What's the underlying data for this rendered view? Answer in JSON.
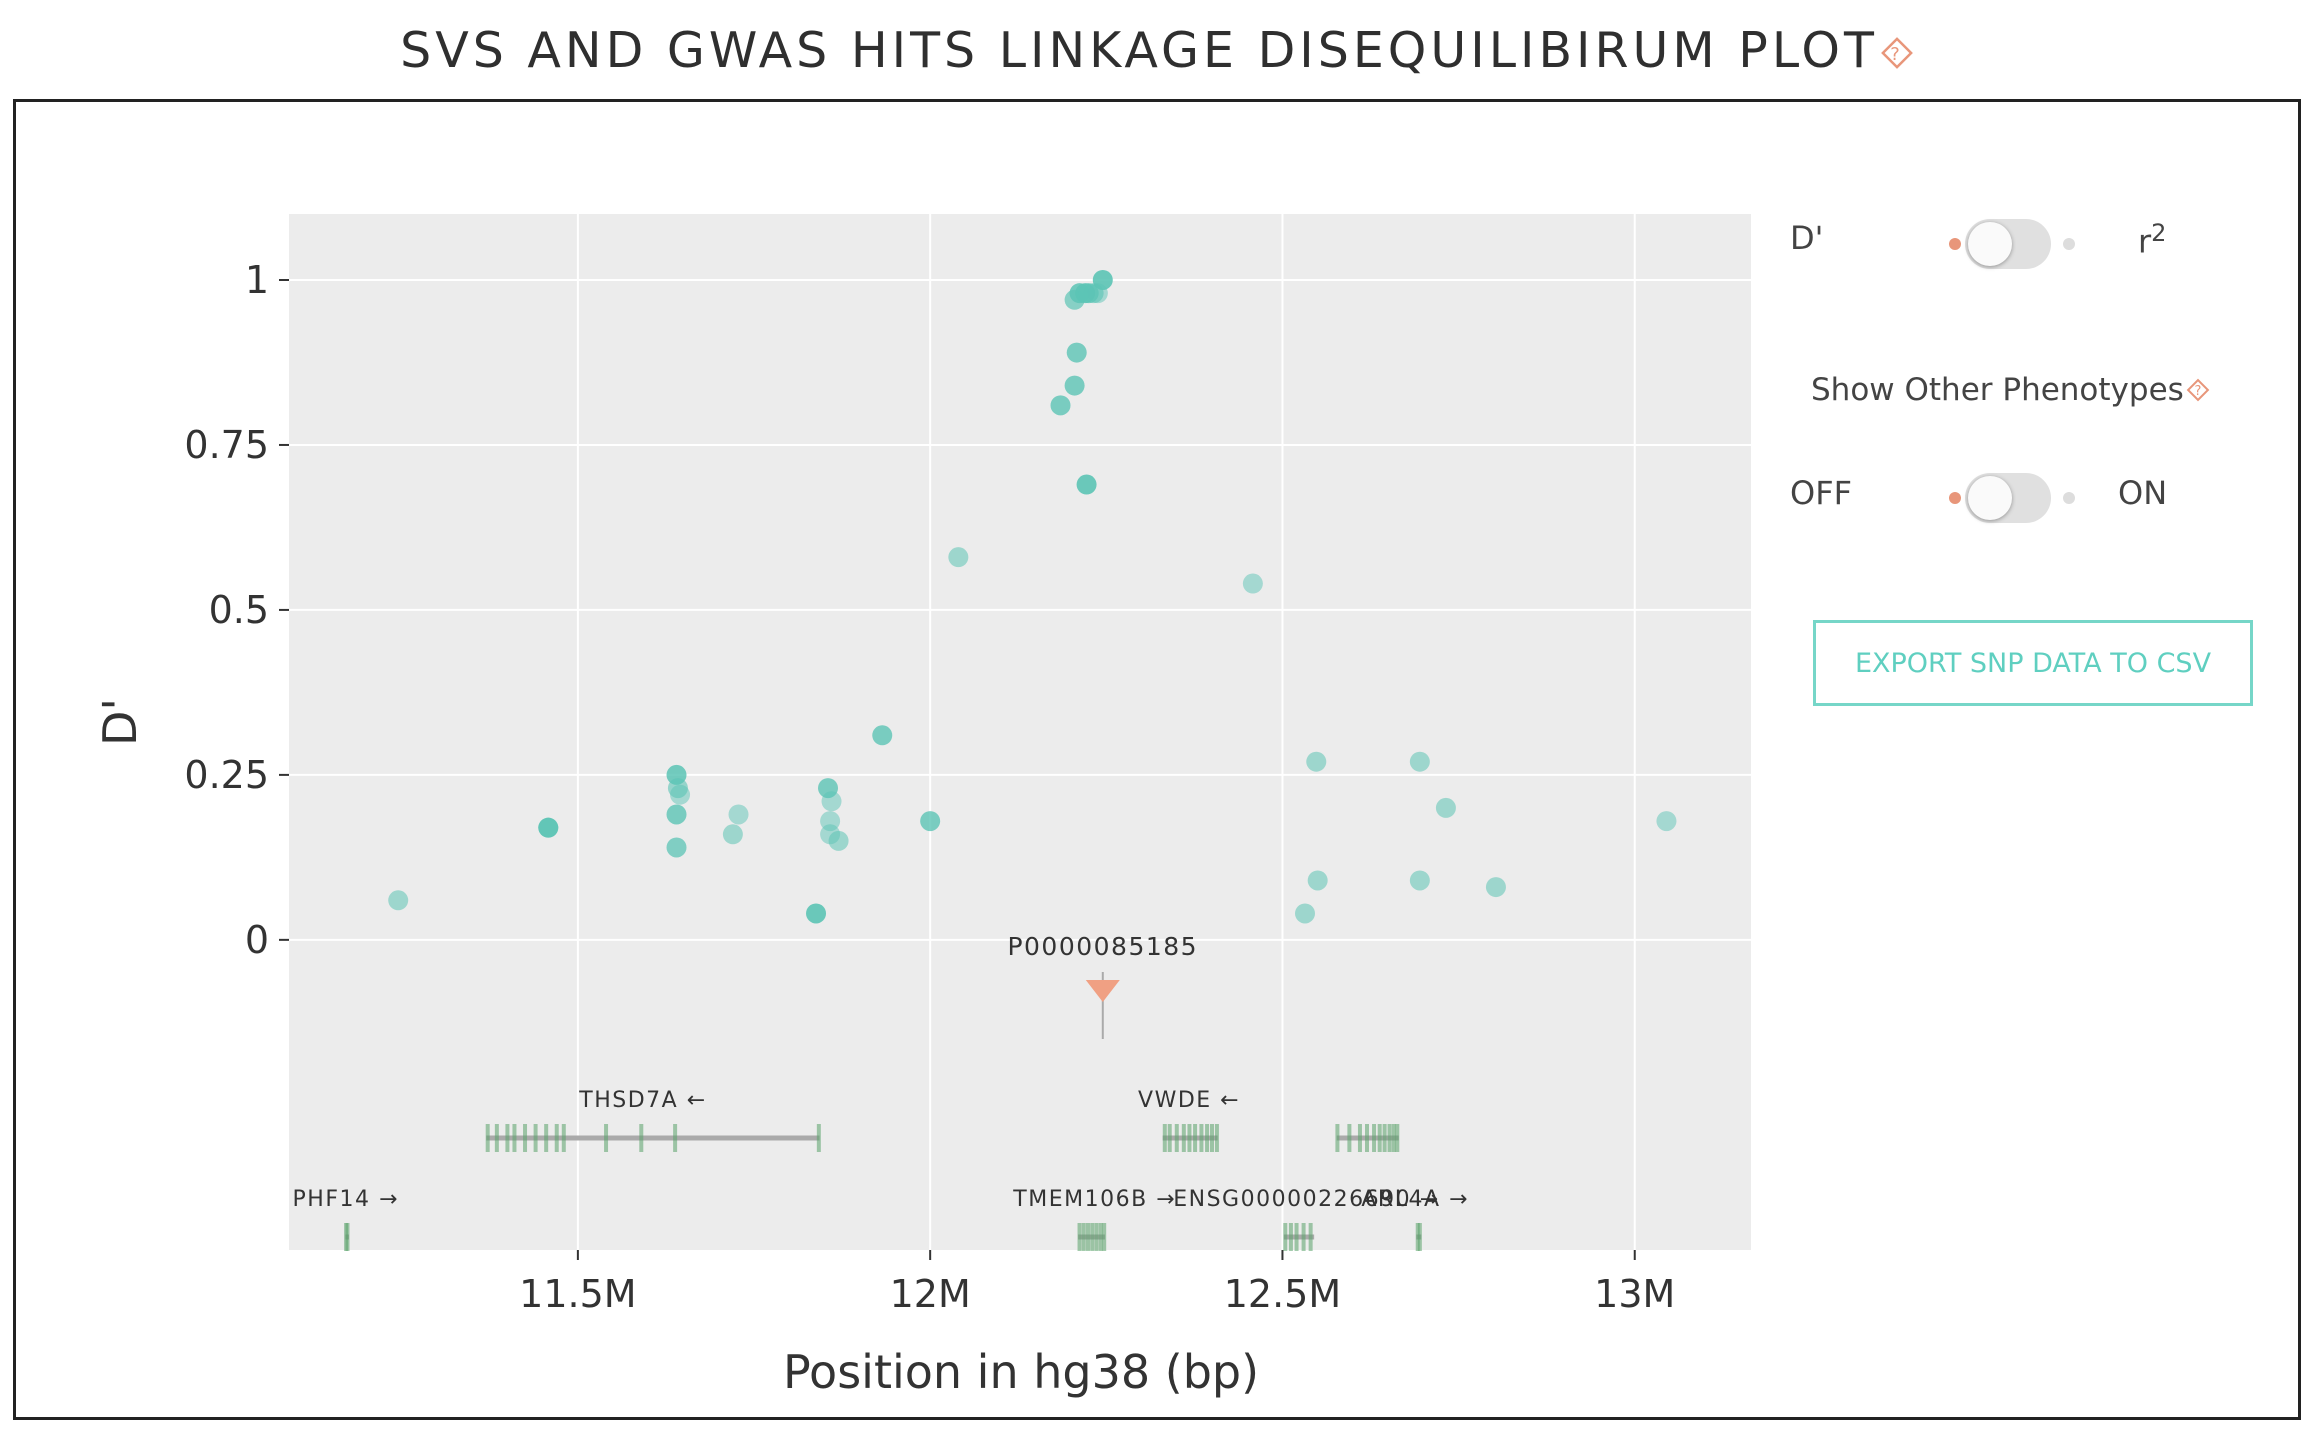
{
  "page": {
    "title": "SVS AND GWAS HITS LINKAGE DISEQUILIBIRUM PLOT",
    "help_icon": "help-icon",
    "accent_color": "#e8967a"
  },
  "controls": {
    "metric_toggle": {
      "left_label": "D'",
      "right_label": "r",
      "right_label_sup": "2",
      "selected": "D'"
    },
    "phenotype_toggle": {
      "heading": "Show Other Phenotypes",
      "off_label": "OFF",
      "on_label": "ON",
      "selected": "OFF"
    },
    "export_button": {
      "label": "EXPORT SNP DATA TO CSV",
      "color": "#76d6c8"
    }
  },
  "chart_data": {
    "type": "scatter",
    "title": "",
    "xlabel": "Position in hg38 (bp)",
    "ylabel": "D'",
    "xlim": [
      11090000,
      13165000
    ],
    "ylim": [
      -0.47,
      1.1
    ],
    "x_ticks": [
      {
        "value": 11500000,
        "label": "11.5M"
      },
      {
        "value": 12000000,
        "label": "12M"
      },
      {
        "value": 12500000,
        "label": "12.5M"
      },
      {
        "value": 13000000,
        "label": "13M"
      }
    ],
    "y_ticks": [
      {
        "value": 0,
        "label": "0"
      },
      {
        "value": 0.25,
        "label": "0.25"
      },
      {
        "value": 0.5,
        "label": "0.5"
      },
      {
        "value": 0.75,
        "label": "0.75"
      },
      {
        "value": 1,
        "label": "1"
      }
    ],
    "grid": true,
    "point_color": "#5cc4b5",
    "points": [
      {
        "x": 11245000,
        "y": 0.06,
        "o": 0.55
      },
      {
        "x": 11458000,
        "y": 0.17,
        "o": 0.85
      },
      {
        "x": 11458000,
        "y": 0.17,
        "o": 0.7
      },
      {
        "x": 11640000,
        "y": 0.25,
        "o": 0.85
      },
      {
        "x": 11642000,
        "y": 0.23,
        "o": 0.6
      },
      {
        "x": 11645000,
        "y": 0.22,
        "o": 0.5
      },
      {
        "x": 11640000,
        "y": 0.19,
        "o": 0.8
      },
      {
        "x": 11640000,
        "y": 0.14,
        "o": 0.75
      },
      {
        "x": 11720000,
        "y": 0.16,
        "o": 0.55
      },
      {
        "x": 11728000,
        "y": 0.19,
        "o": 0.5
      },
      {
        "x": 11838000,
        "y": 0.04,
        "o": 0.9
      },
      {
        "x": 11855000,
        "y": 0.23,
        "o": 0.8
      },
      {
        "x": 11860000,
        "y": 0.21,
        "o": 0.5
      },
      {
        "x": 11858000,
        "y": 0.18,
        "o": 0.5
      },
      {
        "x": 11858000,
        "y": 0.16,
        "o": 0.5
      },
      {
        "x": 11870000,
        "y": 0.15,
        "o": 0.55
      },
      {
        "x": 11932000,
        "y": 0.31,
        "o": 0.8
      },
      {
        "x": 12000000,
        "y": 0.18,
        "o": 0.8
      },
      {
        "x": 12040000,
        "y": 0.58,
        "o": 0.55
      },
      {
        "x": 12185000,
        "y": 0.81,
        "o": 0.8
      },
      {
        "x": 12205000,
        "y": 0.84,
        "o": 0.8
      },
      {
        "x": 12208000,
        "y": 0.89,
        "o": 0.8
      },
      {
        "x": 12205000,
        "y": 0.97,
        "o": 0.7
      },
      {
        "x": 12212000,
        "y": 0.98,
        "o": 0.85
      },
      {
        "x": 12220000,
        "y": 0.98,
        "o": 0.85
      },
      {
        "x": 12225000,
        "y": 0.98,
        "o": 0.75
      },
      {
        "x": 12232000,
        "y": 0.98,
        "o": 0.6
      },
      {
        "x": 12238000,
        "y": 0.98,
        "o": 0.5
      },
      {
        "x": 12245000,
        "y": 1.0,
        "o": 0.9
      },
      {
        "x": 12222000,
        "y": 0.69,
        "o": 0.9
      },
      {
        "x": 12458000,
        "y": 0.54,
        "o": 0.5
      },
      {
        "x": 12532000,
        "y": 0.04,
        "o": 0.55
      },
      {
        "x": 12548000,
        "y": 0.27,
        "o": 0.55
      },
      {
        "x": 12550000,
        "y": 0.09,
        "o": 0.55
      },
      {
        "x": 12695000,
        "y": 0.27,
        "o": 0.55
      },
      {
        "x": 12695000,
        "y": 0.09,
        "o": 0.55
      },
      {
        "x": 12732000,
        "y": 0.2,
        "o": 0.55
      },
      {
        "x": 12803000,
        "y": 0.08,
        "o": 0.55
      },
      {
        "x": 13045000,
        "y": 0.18,
        "o": 0.5
      }
    ],
    "sv_marker": {
      "label": "P0000085185",
      "x": 12245000,
      "color": "#f0a083"
    },
    "genes": [
      {
        "name": "PHF14",
        "strand": "+",
        "row": 2,
        "start": 11170000,
        "end": 11175000,
        "label_x": 11095000,
        "exons": [
          11171000,
          11173000
        ]
      },
      {
        "name": "THSD7A",
        "strand": "-",
        "row": 1,
        "start": 11370000,
        "end": 11843000,
        "label_x": 11502000,
        "exons": [
          11372000,
          11385000,
          11400000,
          11410000,
          11425000,
          11440000,
          11455000,
          11470000,
          11480000,
          11540000,
          11590000,
          11638000,
          11842000
        ]
      },
      {
        "name": "TMEM106B",
        "strand": "+",
        "row": 2,
        "start": 12210000,
        "end": 12248000,
        "label_x": 12118000,
        "exons": [
          12212000,
          12218000,
          12224000,
          12230000,
          12236000,
          12242000,
          12247000
        ]
      },
      {
        "name": "VWDE",
        "strand": "-",
        "row": 1,
        "start": 12330000,
        "end": 12408000,
        "label_x": 12295000,
        "exons": [
          12333000,
          12340000,
          12350000,
          12360000,
          12368000,
          12376000,
          12385000,
          12393000,
          12400000,
          12407000
        ]
      },
      {
        "name": "ENSG00000226690",
        "strand": "+",
        "row": 2,
        "start": 12502000,
        "end": 12545000,
        "label_x": 12345000,
        "exons": [
          12504000,
          12512000,
          12520000,
          12530000,
          12540000
        ]
      },
      {
        "name": "",
        "strand": "+",
        "row": 1,
        "start": 12577000,
        "end": 12665000,
        "label_x": 12600000,
        "exons": [
          12578000,
          12595000,
          12610000,
          12620000,
          12630000,
          12638000,
          12645000,
          12652000,
          12658000,
          12663000
        ]
      },
      {
        "name": "ARL4A",
        "strand": "+",
        "row": 2,
        "start": 12690000,
        "end": 12697000,
        "label_x": 12612000,
        "exons": [
          12692000,
          12695000
        ]
      }
    ]
  }
}
